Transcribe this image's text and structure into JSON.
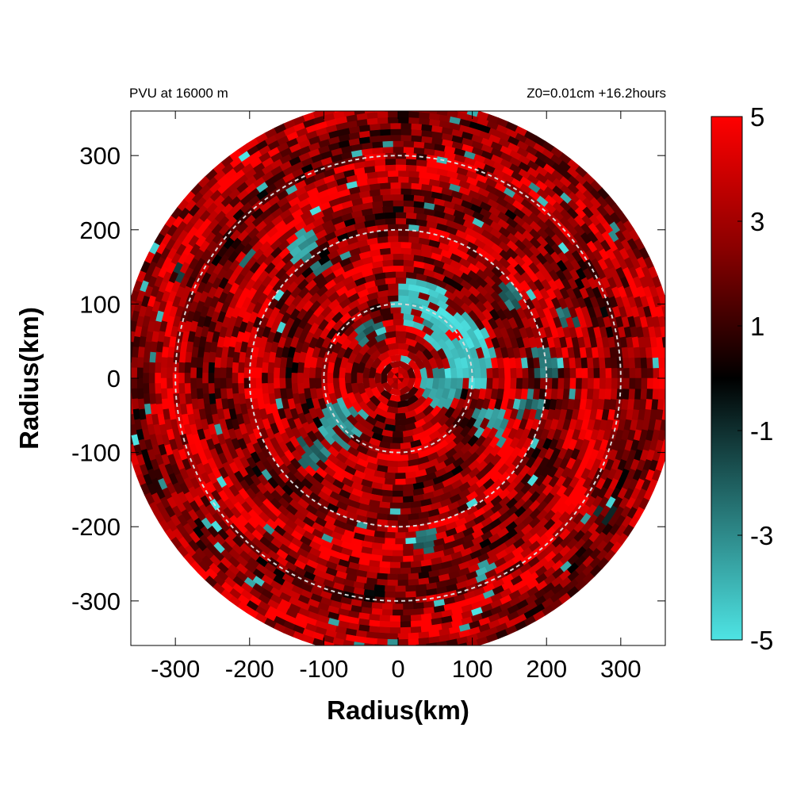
{
  "chart_data": {
    "type": "heatmap",
    "title": "PVU at 16000 m",
    "subtitle": "Z0=0.01cm  +16.2hours",
    "xlabel": "Radius(km)",
    "ylabel": "Radius(km)",
    "xlim": [
      -360,
      360
    ],
    "ylim": [
      -360,
      360
    ],
    "x_ticks": [
      -300,
      -200,
      -100,
      0,
      100,
      200,
      300
    ],
    "y_ticks": [
      300,
      200,
      100,
      0,
      -100,
      -200,
      -300
    ],
    "x_tick_labels": [
      "-300",
      "-200",
      "-100",
      "0",
      "100",
      "200",
      "300"
    ],
    "y_tick_labels": [
      "300",
      "200",
      "100",
      "0",
      "-100",
      "-200",
      "-300"
    ],
    "domain_radius_km": 375,
    "reference_circles_km": [
      100,
      200,
      300
    ],
    "colorbar": {
      "range": [
        -5,
        5
      ],
      "ticks": [
        5,
        3,
        1,
        -1,
        -3,
        -5
      ],
      "tick_labels": [
        "5",
        "3",
        "1",
        "-1",
        "-3",
        "-5"
      ],
      "colors": {
        "min": "#4ee4e4",
        "mid": "#000000",
        "max": "#ff0000"
      }
    },
    "dominant_value_range": [
      1,
      5
    ],
    "negative_patches": [
      {
        "x": 30,
        "y": 100,
        "r": 35,
        "value": -5
      },
      {
        "x": 80,
        "y": 60,
        "r": 40,
        "value": -5
      },
      {
        "x": 100,
        "y": 20,
        "r": 35,
        "value": -5
      },
      {
        "x": 60,
        "y": -10,
        "r": 30,
        "value": -4
      },
      {
        "x": 120,
        "y": -60,
        "r": 25,
        "value": -4
      },
      {
        "x": 180,
        "y": -40,
        "r": 20,
        "value": -3
      },
      {
        "x": 200,
        "y": 20,
        "r": 22,
        "value": -3
      },
      {
        "x": 230,
        "y": 80,
        "r": 15,
        "value": -3
      },
      {
        "x": -80,
        "y": -60,
        "r": 28,
        "value": -4
      },
      {
        "x": -120,
        "y": -100,
        "r": 20,
        "value": -3
      },
      {
        "x": -130,
        "y": 180,
        "r": 25,
        "value": -4
      },
      {
        "x": -100,
        "y": 150,
        "r": 15,
        "value": -3
      },
      {
        "x": 40,
        "y": -220,
        "r": 14,
        "value": -3
      },
      {
        "x": 120,
        "y": -260,
        "r": 14,
        "value": -4
      },
      {
        "x": -200,
        "y": 160,
        "r": 12,
        "value": -3
      },
      {
        "x": -300,
        "y": 140,
        "r": 10,
        "value": -2
      },
      {
        "x": 280,
        "y": -180,
        "r": 12,
        "value": -2
      },
      {
        "x": -40,
        "y": 60,
        "r": 18,
        "value": -3
      },
      {
        "x": 150,
        "y": 110,
        "r": 16,
        "value": -3
      }
    ]
  }
}
